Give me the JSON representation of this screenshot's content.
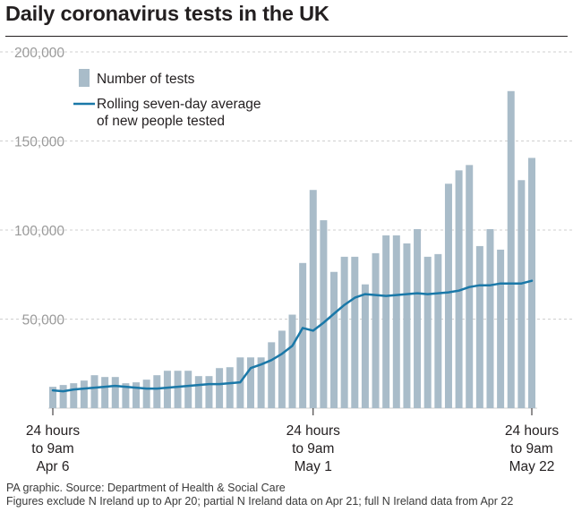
{
  "title": "Daily coronavirus tests in the UK",
  "footer": {
    "source": "PA graphic. Source: Department of Health & Social Care",
    "note": "Figures exclude N Ireland up to Apr 20; partial N Ireland data on Apr 21; full N Ireland data from Apr 22"
  },
  "colors": {
    "bar": "#a9bcc9",
    "line": "#1a78a8",
    "grid": "#cfcfcf",
    "axis_text": "#9a9a9a"
  },
  "chart_data": {
    "type": "bar",
    "title": "Daily coronavirus tests in the UK",
    "grid": true,
    "legend_position": "top-left",
    "ylim": [
      0,
      200000
    ],
    "y_ticks": [
      "200,000",
      "150,000",
      "100,000",
      "50,000"
    ],
    "y_tick_values": [
      200000,
      150000,
      100000,
      50000
    ],
    "x_ticks": [
      {
        "date": "Apr 6",
        "label": [
          "24 hours",
          "to 9am",
          "Apr 6"
        ]
      },
      {
        "date": "May 1",
        "label": [
          "24 hours",
          "to 9am",
          "May 1"
        ]
      },
      {
        "date": "May 22",
        "label": [
          "24 hours",
          "to 9am",
          "May 22"
        ]
      }
    ],
    "x": [
      "Apr 6",
      "Apr 7",
      "Apr 8",
      "Apr 9",
      "Apr 10",
      "Apr 11",
      "Apr 12",
      "Apr 13",
      "Apr 14",
      "Apr 15",
      "Apr 16",
      "Apr 17",
      "Apr 18",
      "Apr 19",
      "Apr 20",
      "Apr 21",
      "Apr 22",
      "Apr 23",
      "Apr 24",
      "Apr 25",
      "Apr 26",
      "Apr 27",
      "Apr 28",
      "Apr 29",
      "Apr 30",
      "May 1",
      "May 2",
      "May 3",
      "May 4",
      "May 5",
      "May 6",
      "May 7",
      "May 8",
      "May 9",
      "May 10",
      "May 11",
      "May 12",
      "May 13",
      "May 14",
      "May 15",
      "May 16",
      "May 17",
      "May 18",
      "May 19",
      "May 20",
      "May 21",
      "May 22"
    ],
    "series": [
      {
        "name": "Number of tests",
        "type": "bar",
        "values": [
          12000,
          13000,
          14000,
          15500,
          18500,
          17500,
          17500,
          14000,
          14500,
          16000,
          18500,
          21000,
          21000,
          21000,
          18000,
          18000,
          22500,
          23000,
          28500,
          28500,
          28500,
          37000,
          43500,
          52500,
          81500,
          122500,
          105500,
          76500,
          85000,
          85000,
          69500,
          87000,
          97000,
          97000,
          92500,
          100500,
          85000,
          86500,
          126000,
          133500,
          136500,
          91000,
          100500,
          89000,
          178000,
          128000,
          140500
        ]
      },
      {
        "name": "Rolling seven-day average of new people tested",
        "type": "line",
        "values": [
          10000,
          9500,
          10500,
          11000,
          11500,
          12000,
          12500,
          12000,
          11500,
          11000,
          11000,
          11500,
          12000,
          12500,
          13000,
          13500,
          13500,
          14000,
          14500,
          22500,
          24500,
          27000,
          30500,
          35000,
          45000,
          43500,
          48000,
          53000,
          58000,
          62000,
          64000,
          63500,
          63000,
          63500,
          64000,
          64500,
          64000,
          64500,
          65000,
          66000,
          68000,
          69000,
          69000,
          70000,
          70000,
          70000,
          71500
        ]
      }
    ]
  }
}
